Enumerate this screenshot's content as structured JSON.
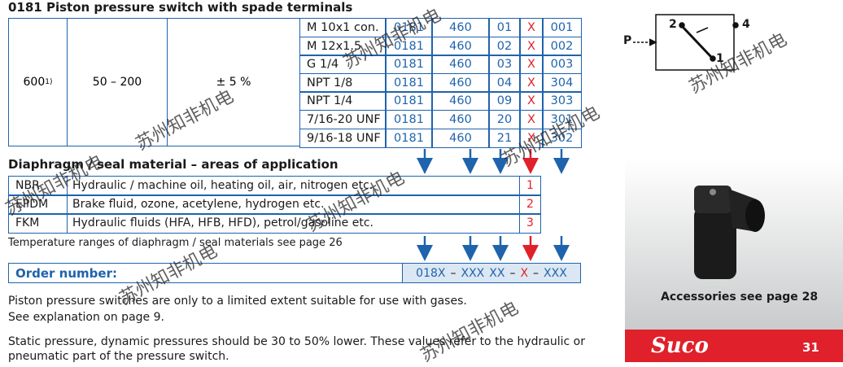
{
  "title": "0181 Piston pressure switch with spade terminals",
  "main_table": {
    "pressure": "600",
    "pressure_note": "1)",
    "range": "50 – 200",
    "tolerance": "± 5 %",
    "rows": [
      [
        "M 10x1 con.",
        "0181",
        "460",
        "01",
        "X",
        "001"
      ],
      [
        "M 12x1.5",
        "0181",
        "460",
        "02",
        "X",
        "002"
      ],
      [
        "G 1/4",
        "0181",
        "460",
        "03",
        "X",
        "003"
      ],
      [
        "NPT 1/8",
        "0181",
        "460",
        "04",
        "X",
        "304"
      ],
      [
        "NPT 1/4",
        "0181",
        "460",
        "09",
        "X",
        "303"
      ],
      [
        "7/16-20 UNF",
        "0181",
        "460",
        "20",
        "X",
        "301"
      ],
      [
        "9/16-18 UNF",
        "0181",
        "460",
        "21",
        "X",
        "302"
      ]
    ]
  },
  "materials": {
    "heading": "Diaphragm / seal material – areas of application",
    "rows": [
      [
        "NBR",
        "Hydraulic / machine oil, heating oil, air, nitrogen etc.",
        "1"
      ],
      [
        "EPDM",
        "Brake fluid, ozone, acetylene, hydrogen etc.",
        "2"
      ],
      [
        "FKM",
        "Hydraulic fluids (HFA, HFB, HFD), petrol/gasoline etc.",
        "3"
      ]
    ],
    "note": "Temperature ranges of diaphragm / seal materials see page 26"
  },
  "order": {
    "label": "Order number:",
    "code": [
      "018X",
      "–",
      "XXX",
      "XX",
      "–",
      "X",
      "–",
      "XXX"
    ]
  },
  "notes": [
    "Piston pressure switches are only to a limited extent suitable for use with gases.",
    "See explanation on page 9.",
    "Static pressure, dynamic pressures should be 30 to 50% lower. These values refer to the hydraulic or",
    "pneumatic part of the pressure switch."
  ],
  "diagram": {
    "labels": [
      "2",
      "4",
      "P",
      "1"
    ]
  },
  "sidebar": {
    "caption": "Accessories see page 28",
    "brand": "Suco",
    "page": "31"
  },
  "watermarks": [
    "苏州知非机电",
    "苏州知非机电",
    "苏州知非机电",
    "苏州知非机电",
    "苏州知非机电",
    "苏州知非机电",
    "苏州知非机电",
    "苏州知非机电"
  ]
}
